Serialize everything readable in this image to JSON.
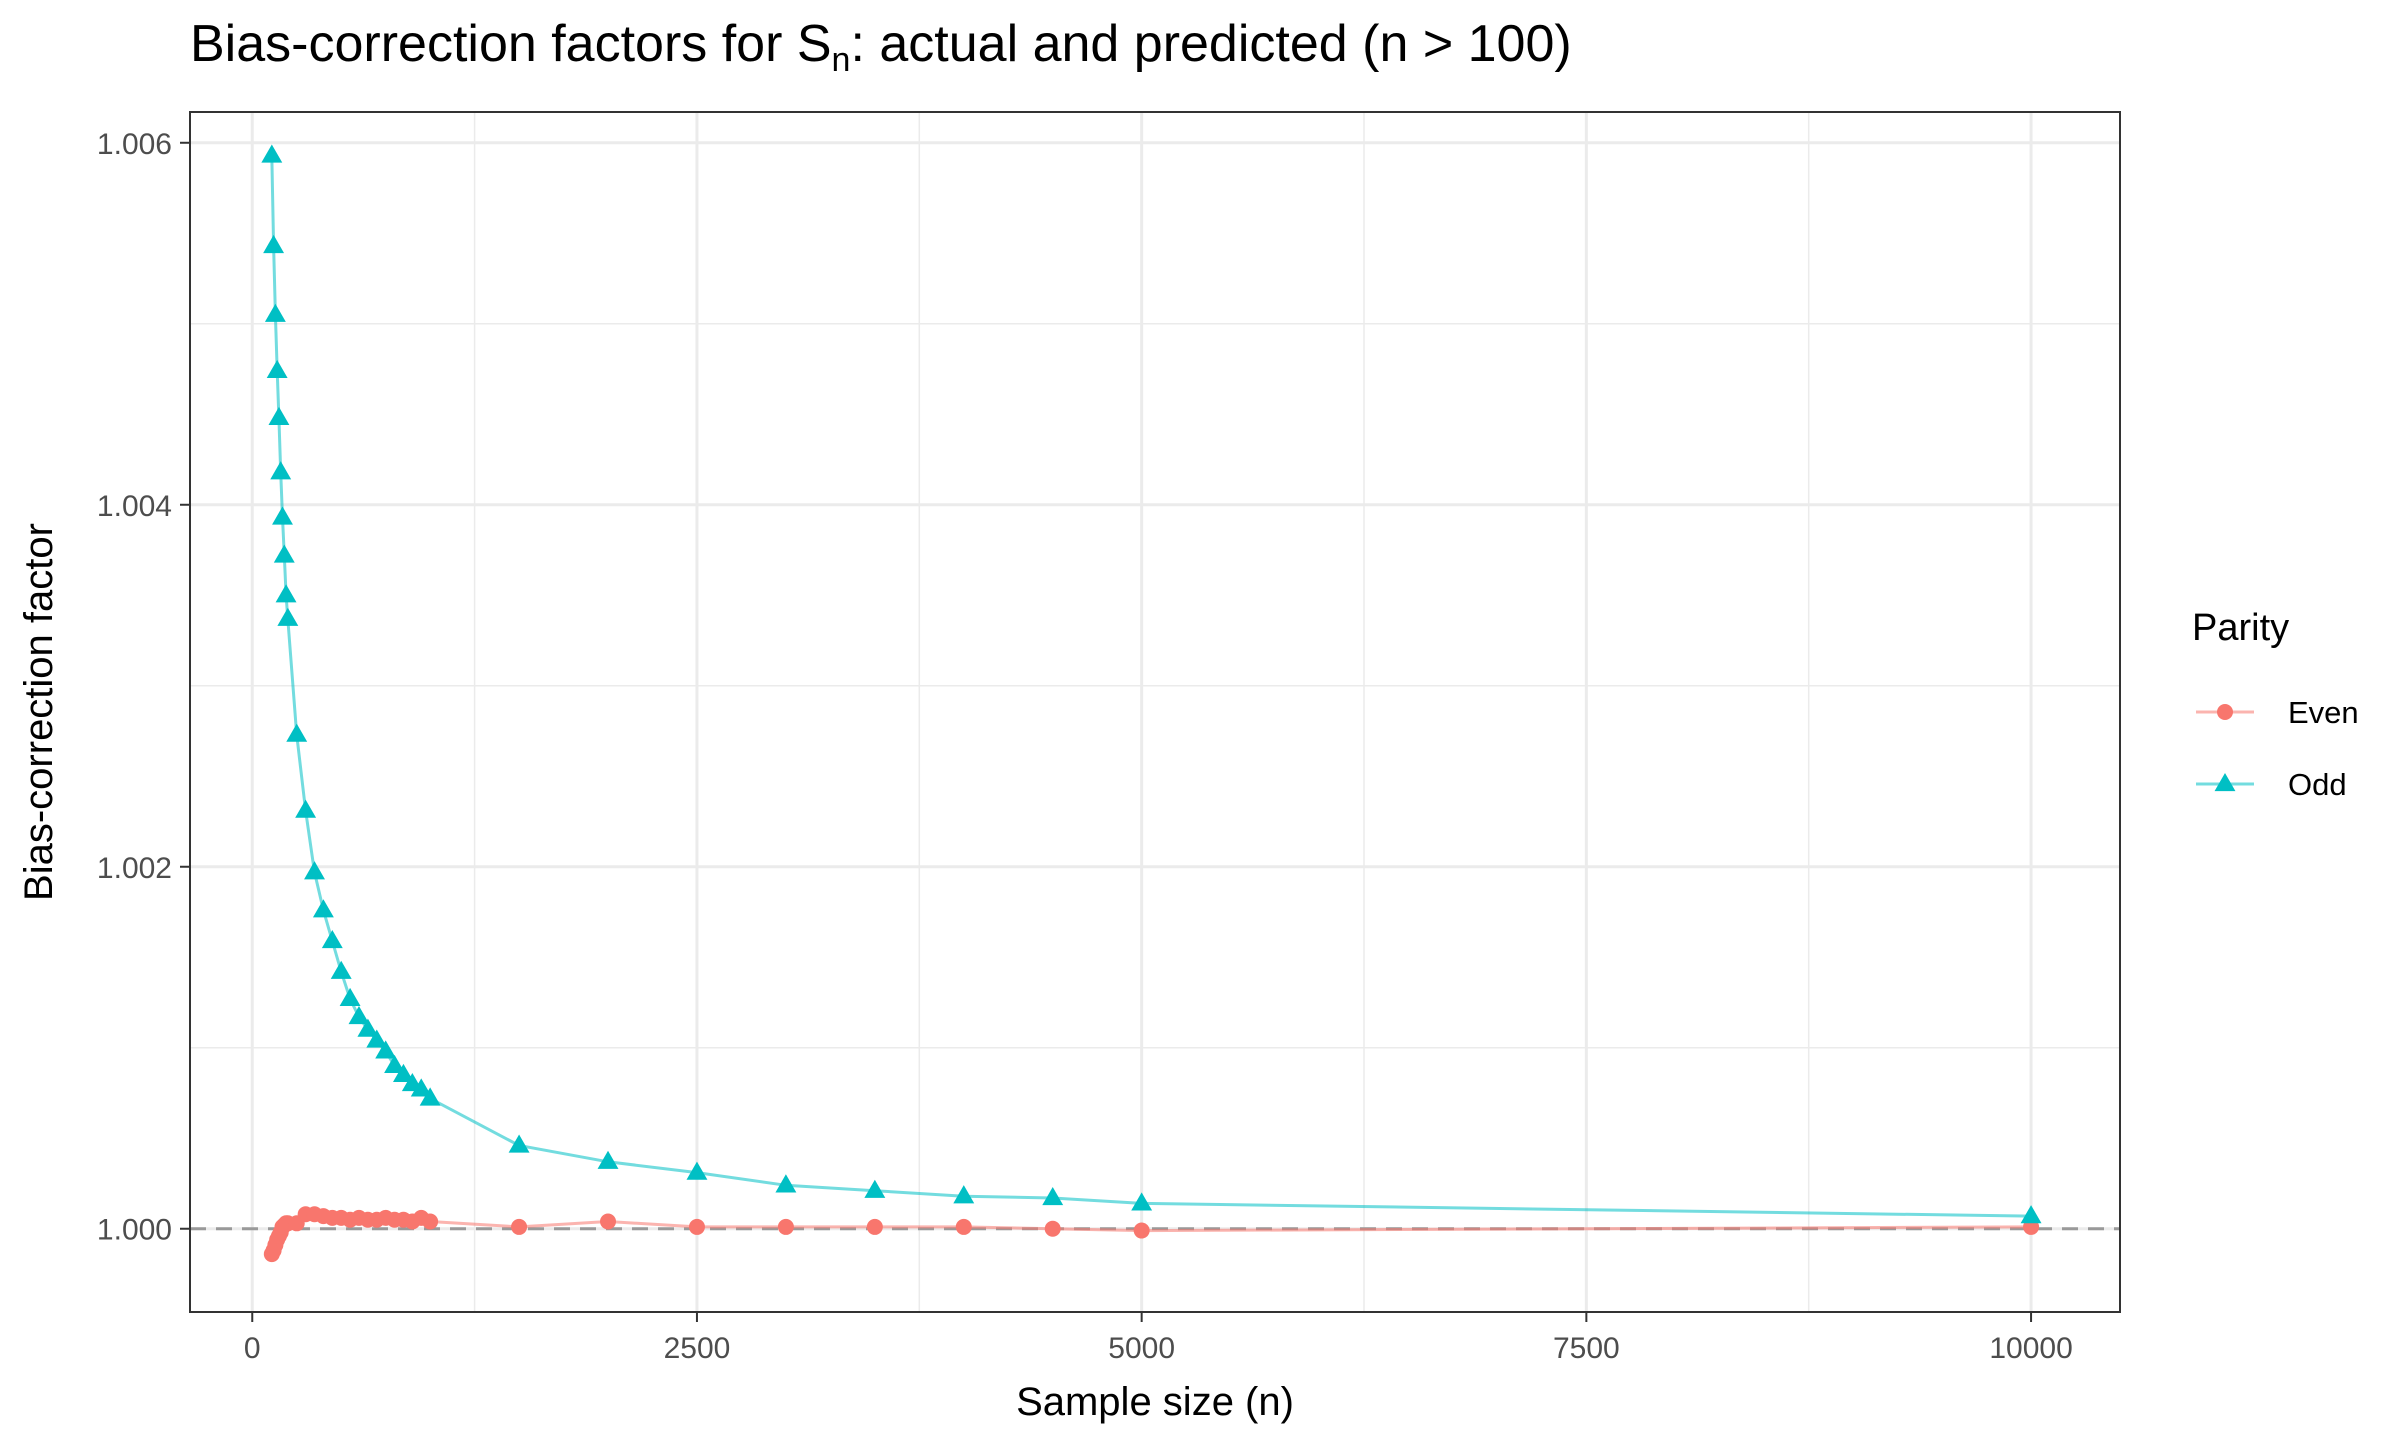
{
  "title": {
    "prefix": "Bias-correction factors for S",
    "subscript": "n",
    "suffix": ": actual and predicted (n > 100)"
  },
  "chart_data": {
    "type": "line",
    "title": "Bias-correction factors for Sn: actual and predicted (n > 100)",
    "xlabel": "Sample size (n)",
    "ylabel": "Bias-correction factor",
    "xlim": [
      -350,
      10500
    ],
    "ylim": [
      0.99954,
      1.00617
    ],
    "x_ticks": [
      0,
      2500,
      5000,
      7500,
      10000
    ],
    "x_tick_labels": [
      "0",
      "2500",
      "5000",
      "7500",
      "10000"
    ],
    "y_ticks": [
      1.0,
      1.002,
      1.004,
      1.006
    ],
    "y_tick_labels": [
      "1.000",
      "1.002",
      "1.004",
      "1.006"
    ],
    "grid": true,
    "reference_line": {
      "y": 1.0,
      "style": "dashed",
      "color": "#999999"
    },
    "legend": {
      "title": "Parity",
      "placement": "right",
      "entries": [
        {
          "name": "Even",
          "marker": "circle",
          "color": "#F8766D"
        },
        {
          "name": "Odd",
          "marker": "triangle",
          "color": "#00BFC4"
        }
      ]
    },
    "series": [
      {
        "name": "Even",
        "marker": "circle",
        "color": "#F8766D",
        "x": [
          110,
          120,
          130,
          140,
          150,
          160,
          170,
          180,
          190,
          200,
          250,
          300,
          350,
          400,
          450,
          500,
          550,
          600,
          650,
          700,
          750,
          800,
          850,
          900,
          950,
          1000,
          1500,
          2000,
          2500,
          3000,
          3500,
          4000,
          4500,
          5000,
          10000
        ],
        "y": [
          0.99986,
          0.99988,
          0.99991,
          0.99994,
          0.99996,
          0.99998,
          1.00001,
          1.00002,
          1.00003,
          1.00003,
          1.00003,
          1.00008,
          1.00008,
          1.00007,
          1.00006,
          1.00006,
          1.00005,
          1.00006,
          1.00005,
          1.00005,
          1.00006,
          1.00005,
          1.00005,
          1.00004,
          1.00006,
          1.00004,
          1.00001,
          1.00004,
          1.00001,
          1.00001,
          1.00001,
          1.00001,
          1.0,
          0.99999,
          1.00001
        ]
      },
      {
        "name": "Odd",
        "marker": "triangle",
        "color": "#00BFC4",
        "x": [
          110,
          120,
          130,
          140,
          150,
          160,
          170,
          180,
          190,
          200,
          250,
          300,
          350,
          400,
          450,
          500,
          550,
          600,
          650,
          700,
          750,
          800,
          850,
          900,
          950,
          1000,
          1500,
          2000,
          2500,
          3000,
          3500,
          4000,
          4500,
          5000,
          10000
        ],
        "y": [
          1.00593,
          1.00543,
          1.00505,
          1.00474,
          1.00448,
          1.00418,
          1.00393,
          1.00372,
          1.0035,
          1.00337,
          1.00273,
          1.00231,
          1.00197,
          1.00176,
          1.00159,
          1.00142,
          1.00127,
          1.00117,
          1.0011,
          1.00104,
          1.00098,
          1.0009,
          1.00085,
          1.0008,
          1.00077,
          1.00072,
          1.00046,
          1.00037,
          1.00031,
          1.00024,
          1.00021,
          1.00018,
          1.00017,
          1.00014,
          1.00007
        ]
      }
    ]
  }
}
